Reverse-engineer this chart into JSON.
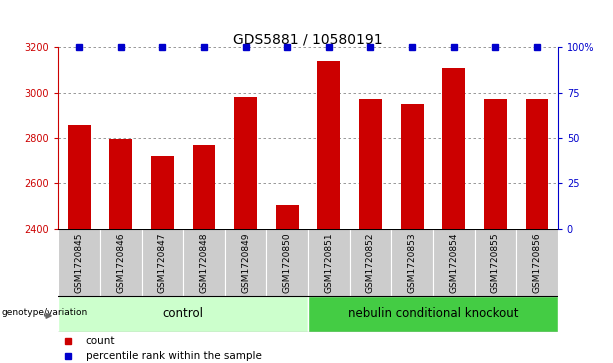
{
  "title": "GDS5881 / 10580191",
  "samples": [
    "GSM1720845",
    "GSM1720846",
    "GSM1720847",
    "GSM1720848",
    "GSM1720849",
    "GSM1720850",
    "GSM1720851",
    "GSM1720852",
    "GSM1720853",
    "GSM1720854",
    "GSM1720855",
    "GSM1720856"
  ],
  "counts": [
    2855,
    2795,
    2720,
    2770,
    2980,
    2505,
    3140,
    2970,
    2950,
    3110,
    2970,
    2970
  ],
  "percentiles": [
    100,
    100,
    100,
    100,
    100,
    100,
    100,
    100,
    100,
    100,
    100,
    100
  ],
  "ylim_left": [
    2400,
    3200
  ],
  "ylim_right": [
    0,
    100
  ],
  "yticks_left": [
    2400,
    2600,
    2800,
    3000,
    3200
  ],
  "yticks_right": [
    0,
    25,
    50,
    75,
    100
  ],
  "ytick_labels_right": [
    "0",
    "25",
    "50",
    "75",
    "100%"
  ],
  "bar_color": "#cc0000",
  "percentile_color": "#0000cc",
  "grid_color": "#888888",
  "bar_width": 0.55,
  "groups": [
    {
      "label": "control",
      "start": 0,
      "end": 6,
      "color": "#ccffcc"
    },
    {
      "label": "nebulin conditional knockout",
      "start": 6,
      "end": 12,
      "color": "#44cc44"
    }
  ],
  "group_label": "genotype/variation",
  "legend_items": [
    {
      "label": "count",
      "color": "#cc0000"
    },
    {
      "label": "percentile rank within the sample",
      "color": "#0000cc"
    }
  ],
  "sample_bg_color": "#cccccc",
  "title_fontsize": 10,
  "tick_fontsize": 7,
  "group_fontsize": 8.5,
  "label_fontsize": 6.5,
  "legend_fontsize": 7.5
}
